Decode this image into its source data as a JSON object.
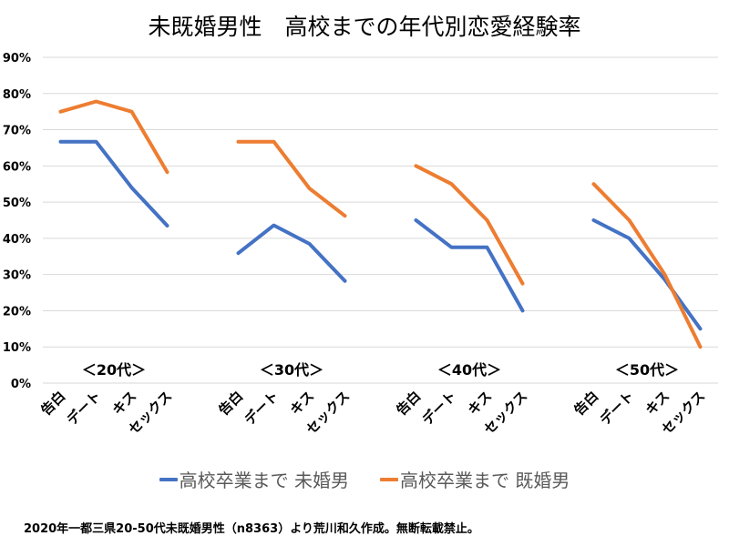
{
  "chart_data": {
    "type": "line",
    "title": "未既婚男性　高校までの年代別恋愛経験率",
    "xlabel": "",
    "ylabel": "",
    "ylim": [
      0,
      90
    ],
    "y_unit": "%",
    "y_ticks": [
      "0%",
      "10%",
      "20%",
      "30%",
      "40%",
      "50%",
      "60%",
      "70%",
      "80%",
      "90%"
    ],
    "grid": true,
    "legend_position": "bottom",
    "groups": [
      {
        "label": "＜20代＞",
        "categories": [
          "告白",
          "デート",
          "キス",
          "セックス"
        ]
      },
      {
        "label": "＜30代＞",
        "categories": [
          "告白",
          "デート",
          "キス",
          "セックス"
        ]
      },
      {
        "label": "＜40代＞",
        "categories": [
          "告白",
          "デート",
          "キス",
          "セックス"
        ]
      },
      {
        "label": "＜50代＞",
        "categories": [
          "告白",
          "デート",
          "キス",
          "セックス"
        ]
      }
    ],
    "series": [
      {
        "name": "高校卒業まで 未婚男",
        "color": "#4472C4",
        "values": [
          [
            66.7,
            66.7,
            54.0,
            43.5
          ],
          [
            35.9,
            43.6,
            38.5,
            28.2
          ],
          [
            45.0,
            37.5,
            37.5,
            20.0
          ],
          [
            45.0,
            40.0,
            28.6,
            15.0
          ]
        ]
      },
      {
        "name": "高校卒業まで 既婚男",
        "color": "#ED7D31",
        "values": [
          [
            75.0,
            77.8,
            75.0,
            58.3
          ],
          [
            66.7,
            66.7,
            53.8,
            46.2
          ],
          [
            60.0,
            55.0,
            45.0,
            27.5
          ],
          [
            55.0,
            45.0,
            30.0,
            10.0
          ]
        ]
      }
    ]
  },
  "footer": "2020年一都三県20-50代未既婚男性（n8363）より荒川和久作成。無断転載禁止。",
  "colors": {
    "gridline": "#D9D9D9",
    "legend_text": "#595959"
  }
}
